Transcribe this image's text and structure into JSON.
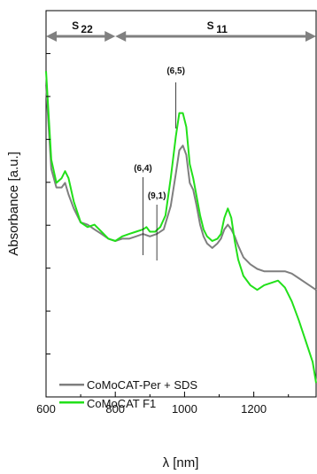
{
  "chart_data": {
    "type": "line",
    "xlabel": "λ [nm]",
    "ylabel": "Absorbance [a.u.]",
    "xlim": [
      600,
      1380
    ],
    "ylim": [
      0.17,
      1.0
    ],
    "x_ticks": [
      600,
      800,
      1000,
      1200
    ],
    "grid": false,
    "legend": "bottom-left",
    "series": [
      {
        "name": "CoMoCAT-Per + SDS",
        "color": "#7f7f7f",
        "x": [
          600,
          615,
          630,
          645,
          655,
          665,
          680,
          700,
          720,
          740,
          760,
          780,
          800,
          820,
          840,
          860,
          880,
          900,
          920,
          940,
          960,
          975,
          985,
          995,
          1005,
          1015,
          1025,
          1035,
          1045,
          1055,
          1065,
          1080,
          1095,
          1105,
          1115,
          1125,
          1135,
          1145,
          1155,
          1170,
          1190,
          1210,
          1230,
          1250,
          1270,
          1290,
          1310,
          1330,
          1350,
          1370,
          1380
        ],
        "y": [
          0.84,
          0.66,
          0.62,
          0.62,
          0.63,
          0.605,
          0.575,
          0.545,
          0.54,
          0.53,
          0.52,
          0.51,
          0.505,
          0.51,
          0.51,
          0.515,
          0.52,
          0.515,
          0.52,
          0.53,
          0.58,
          0.65,
          0.7,
          0.71,
          0.69,
          0.63,
          0.615,
          0.58,
          0.54,
          0.515,
          0.5,
          0.49,
          0.5,
          0.51,
          0.53,
          0.54,
          0.53,
          0.515,
          0.495,
          0.47,
          0.455,
          0.445,
          0.44,
          0.44,
          0.44,
          0.44,
          0.435,
          0.425,
          0.415,
          0.405,
          0.4
        ]
      },
      {
        "name": "CoMoCAT F1",
        "color": "#22e01a",
        "x": [
          600,
          615,
          630,
          645,
          655,
          665,
          680,
          700,
          720,
          740,
          760,
          780,
          800,
          820,
          840,
          860,
          880,
          890,
          900,
          915,
          930,
          945,
          960,
          975,
          985,
          995,
          1005,
          1015,
          1025,
          1035,
          1045,
          1055,
          1065,
          1080,
          1095,
          1105,
          1115,
          1125,
          1135,
          1145,
          1155,
          1170,
          1190,
          1210,
          1230,
          1250,
          1270,
          1290,
          1310,
          1330,
          1350,
          1370,
          1380
        ],
        "y": [
          0.87,
          0.68,
          0.63,
          0.64,
          0.655,
          0.64,
          0.59,
          0.545,
          0.535,
          0.54,
          0.525,
          0.51,
          0.505,
          0.515,
          0.52,
          0.525,
          0.53,
          0.535,
          0.525,
          0.525,
          0.535,
          0.56,
          0.64,
          0.73,
          0.78,
          0.78,
          0.75,
          0.67,
          0.64,
          0.6,
          0.56,
          0.53,
          0.515,
          0.505,
          0.51,
          0.52,
          0.555,
          0.575,
          0.555,
          0.505,
          0.465,
          0.43,
          0.41,
          0.4,
          0.41,
          0.415,
          0.42,
          0.405,
          0.375,
          0.335,
          0.29,
          0.245,
          0.2
        ]
      }
    ],
    "regions": [
      {
        "label": "S",
        "subscript": "22",
        "from": 600,
        "to": 800
      },
      {
        "label": "S",
        "subscript": "11",
        "from": 800,
        "to": 1380
      }
    ],
    "annotations": [
      {
        "label": "(6,5)",
        "x": 975
      },
      {
        "label": "(6,4)",
        "x": 880
      },
      {
        "label": "(9,1)",
        "x": 920
      }
    ]
  }
}
